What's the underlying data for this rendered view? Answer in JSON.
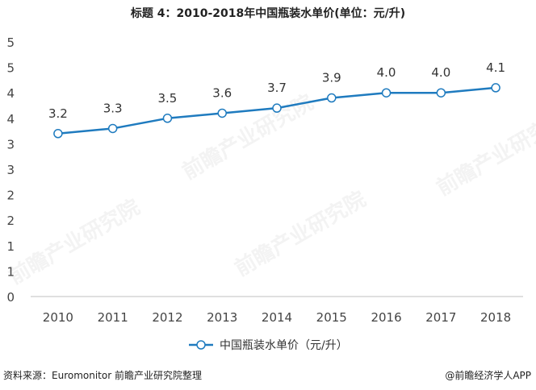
{
  "title": "标题 4：2010-2018年中国瓶装水单价(单位：元/升)",
  "source": "资料来源：Euromonitor 前瞻产业研究院整理",
  "brand": "@前瞻经济学人APP",
  "watermark": "前瞻产业研究院",
  "colors": {
    "line": "#1f7bbf",
    "marker_fill": "#ffffff",
    "axis_text": "#444444",
    "axis_line": "#bfbfbf"
  },
  "chart_data": {
    "type": "line",
    "title": "标题 4：2010-2018年中国瓶装水单价(单位：元/升)",
    "xlabel": "",
    "ylabel": "",
    "categories": [
      "2010",
      "2011",
      "2012",
      "2013",
      "2014",
      "2015",
      "2016",
      "2017",
      "2018"
    ],
    "series": [
      {
        "name": "中国瓶装水单价（元/升）",
        "values": [
          3.2,
          3.3,
          3.5,
          3.6,
          3.7,
          3.9,
          4.0,
          4.0,
          4.1
        ]
      }
    ],
    "data_labels": [
      "3.2",
      "3.3",
      "3.5",
      "3.6",
      "3.7",
      "3.9",
      "4.0",
      "4.0",
      "4.1"
    ],
    "yticks": [
      "0",
      "1",
      "1",
      "2",
      "2",
      "3",
      "3",
      "4",
      "4",
      "5",
      "5"
    ],
    "ylim": [
      0,
      5
    ],
    "grid": false,
    "legend": "bottom"
  }
}
